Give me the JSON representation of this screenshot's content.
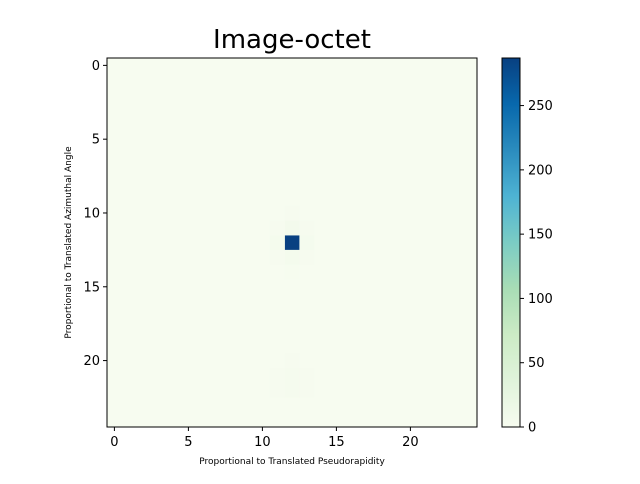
{
  "chart_data": {
    "type": "heatmap",
    "title": "Image-octet",
    "xlabel": "Proportional to Translated Pseudorapidity",
    "ylabel": "Proportional to Translated Azimuthal Angle",
    "grid": false,
    "colormap": "GnBu",
    "rows": 25,
    "cols": 25,
    "vmin": 0,
    "vmax": 287,
    "x_ticks": [
      0,
      5,
      10,
      15,
      20
    ],
    "y_ticks": [
      0,
      5,
      10,
      15,
      20
    ],
    "colorbar_ticks": [
      0,
      50,
      100,
      150,
      200,
      250
    ],
    "colorbar_colors": [
      "#f7fcf0",
      "#e0f3db",
      "#ccebc5",
      "#a8ddb5",
      "#7bccc4",
      "#4eb3d3",
      "#2b8cbe",
      "#0868ac",
      "#084081"
    ],
    "values_note_default": 0,
    "cells": [
      {
        "row": 12,
        "col": 12,
        "value": 287
      },
      {
        "row": 11,
        "col": 12,
        "value": 6
      },
      {
        "row": 13,
        "col": 12,
        "value": 5
      },
      {
        "row": 12,
        "col": 11,
        "value": 5
      },
      {
        "row": 12,
        "col": 13,
        "value": 4
      },
      {
        "row": 11,
        "col": 11,
        "value": 2
      },
      {
        "row": 11,
        "col": 13,
        "value": 2
      },
      {
        "row": 13,
        "col": 11,
        "value": 2
      },
      {
        "row": 13,
        "col": 13,
        "value": 2
      },
      {
        "row": 10,
        "col": 12,
        "value": 2
      },
      {
        "row": 14,
        "col": 12,
        "value": 1
      },
      {
        "row": 20,
        "col": 12,
        "value": 2
      },
      {
        "row": 21,
        "col": 12,
        "value": 3
      },
      {
        "row": 22,
        "col": 12,
        "value": 3
      },
      {
        "row": 21,
        "col": 11,
        "value": 2
      },
      {
        "row": 22,
        "col": 11,
        "value": 2
      },
      {
        "row": 21,
        "col": 13,
        "value": 2
      },
      {
        "row": 22,
        "col": 13,
        "value": 2
      }
    ]
  }
}
